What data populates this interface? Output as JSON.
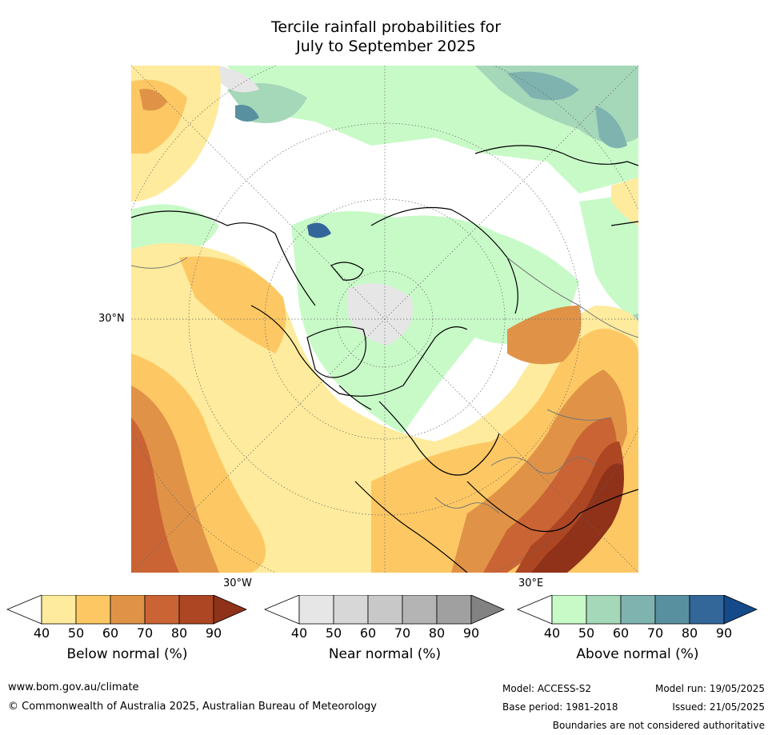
{
  "title_line1": "Tercile rainfall probabilities for",
  "title_line2": "July to September 2025",
  "map": {
    "lat_label": "30°N",
    "lon_label_west": "30°W",
    "lon_label_east": "30°E",
    "projection": "north-polar-stereographic",
    "background": "#ffffff"
  },
  "colorbars": [
    {
      "title": "Below normal (%)",
      "ticks": [
        "40",
        "50",
        "60",
        "70",
        "80",
        "90"
      ],
      "colors": [
        "#ffffff",
        "#feeb9d",
        "#fdc863",
        "#e09347",
        "#cb6434",
        "#ad4623",
        "#8f3219"
      ]
    },
    {
      "title": "Near normal (%)",
      "ticks": [
        "40",
        "50",
        "60",
        "70",
        "80",
        "90"
      ],
      "colors": [
        "#ffffff",
        "#e6e6e6",
        "#d7d7d7",
        "#c8c8c8",
        "#b4b4b4",
        "#a0a0a0",
        "#828282"
      ]
    },
    {
      "title": "Above normal (%)",
      "ticks": [
        "40",
        "50",
        "60",
        "70",
        "80",
        "90"
      ],
      "colors": [
        "#ffffff",
        "#c8fac8",
        "#a5d7b9",
        "#7fb3b0",
        "#5890a0",
        "#336699",
        "#144a8a"
      ]
    }
  ],
  "footer": {
    "website": "www.bom.gov.au/climate",
    "copyright": "© Commonwealth of Australia 2025, Australian Bureau of Meteorology",
    "model": "Model: ACCESS-S2",
    "base_period": "Base period: 1981-2018",
    "model_run": "Model run: 19/05/2025",
    "issued": "Issued: 21/05/2025",
    "boundaries_note": "Boundaries are not considered authoritative"
  }
}
